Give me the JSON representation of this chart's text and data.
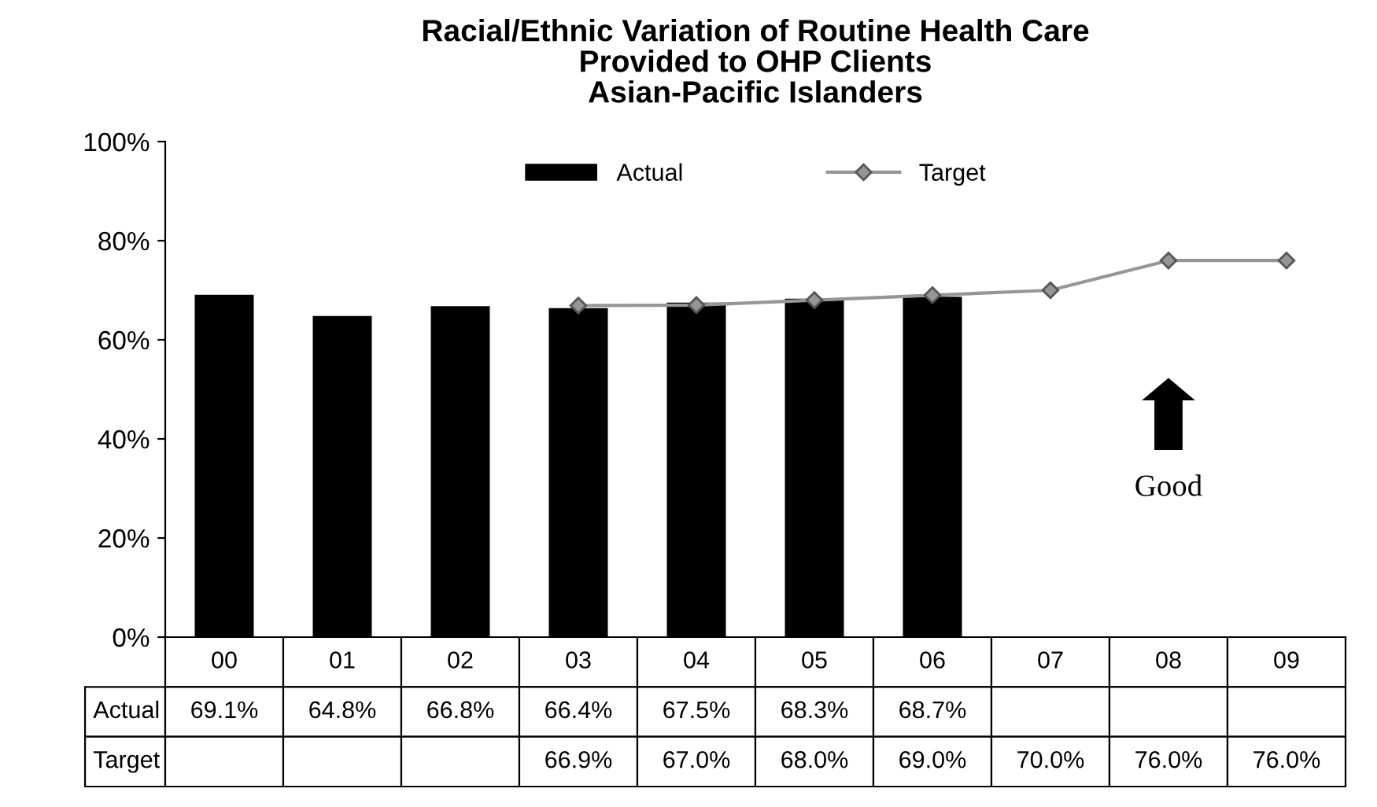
{
  "chart_data": {
    "type": "bar",
    "title": "Racial/Ethnic Variation of Routine Health Care\nProvided to OHP Clients\nAsian-Pacific Islanders",
    "categories": [
      "00",
      "01",
      "02",
      "03",
      "04",
      "05",
      "06",
      "07",
      "08",
      "09"
    ],
    "series": [
      {
        "name": "Actual",
        "color": "#000000",
        "values": [
          69.1,
          64.8,
          66.8,
          66.4,
          67.5,
          68.3,
          68.7,
          null,
          null,
          null
        ],
        "value_labels": [
          "69.1%",
          "64.8%",
          "66.8%",
          "66.4%",
          "67.5%",
          "68.3%",
          "68.7%",
          null,
          null,
          null
        ]
      },
      {
        "name": "Target",
        "type": "line",
        "color": "#969696",
        "marker": "diamond",
        "values": [
          null,
          null,
          null,
          66.9,
          67.0,
          68.0,
          69.0,
          70.0,
          76.0,
          76.0
        ],
        "value_labels": [
          null,
          null,
          null,
          "66.9%",
          "67.0%",
          "68.0%",
          "69.0%",
          "70.0%",
          "76.0%",
          "76.0%"
        ]
      }
    ],
    "ylim": [
      0,
      100
    ],
    "yticks": [
      {
        "value": 0,
        "label": "0%"
      },
      {
        "value": 20,
        "label": "20%"
      },
      {
        "value": 40,
        "label": "40%"
      },
      {
        "value": 60,
        "label": "60%"
      },
      {
        "value": 80,
        "label": "80%"
      },
      {
        "value": 100,
        "label": "100%"
      }
    ],
    "legend": "top",
    "grid": false,
    "annotations": [
      "Good"
    ]
  }
}
